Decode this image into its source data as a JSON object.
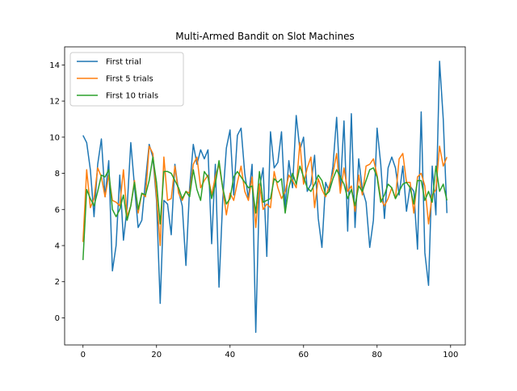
{
  "chart_data": {
    "type": "line",
    "title": "Multi-Armed Bandit on Slot Machines",
    "xlabel": "",
    "ylabel": "",
    "xlim": [
      -5,
      104
    ],
    "ylim": [
      -1.5,
      15
    ],
    "xticks": [
      0,
      20,
      40,
      60,
      80,
      100
    ],
    "yticks": [
      0,
      2,
      4,
      6,
      8,
      10,
      12,
      14
    ],
    "grid": false,
    "legend_position": "top-left",
    "series": [
      {
        "name": "First trial",
        "color": "#1f77b4",
        "x": [
          0,
          1,
          2,
          3,
          4,
          5,
          6,
          7,
          8,
          9,
          10,
          11,
          12,
          13,
          14,
          15,
          16,
          17,
          18,
          19,
          20,
          21,
          22,
          23,
          24,
          25,
          26,
          27,
          28,
          29,
          30,
          31,
          32,
          33,
          34,
          35,
          36,
          37,
          38,
          39,
          40,
          41,
          42,
          43,
          44,
          45,
          46,
          47,
          48,
          49,
          50,
          51,
          52,
          53,
          54,
          55,
          56,
          57,
          58,
          59,
          60,
          61,
          62,
          63,
          64,
          65,
          66,
          67,
          68,
          69,
          70,
          71,
          72,
          73,
          74,
          75,
          76,
          77,
          78,
          79,
          80,
          81,
          82,
          83,
          84,
          85,
          86,
          87,
          88,
          89,
          90,
          91,
          92,
          93,
          94,
          95,
          96,
          97,
          98,
          99
        ],
        "values": [
          10.1,
          9.7,
          8.2,
          5.6,
          8.5,
          9.9,
          6.7,
          8.7,
          2.6,
          4.0,
          7.9,
          4.3,
          6.1,
          9.7,
          7.3,
          5.0,
          5.4,
          7.6,
          9.6,
          8.9,
          6.5,
          0.8,
          6.5,
          6.3,
          4.6,
          8.5,
          7.0,
          6.2,
          2.9,
          7.2,
          9.6,
          8.5,
          9.3,
          8.8,
          9.3,
          4.1,
          8.5,
          1.7,
          6.5,
          9.4,
          10.4,
          6.8,
          10.1,
          10.5,
          8.0,
          6.6,
          8.5,
          -0.8,
          7.2,
          8.3,
          3.4,
          10.3,
          8.3,
          8.6,
          10.3,
          6.1,
          8.7,
          7.2,
          11.2,
          9.3,
          10.0,
          7.0,
          7.4,
          9.0,
          5.5,
          3.9,
          7.5,
          7.0,
          8.4,
          11.1,
          7.1,
          10.9,
          4.8,
          11.3,
          5.0,
          8.8,
          7.1,
          6.4,
          3.9,
          5.4,
          10.5,
          8.5,
          5.5,
          8.3,
          8.9,
          8.3,
          6.8,
          8.4,
          5.9,
          7.3,
          7.0,
          3.8,
          11.4,
          3.6,
          1.8,
          8.4,
          5.7,
          14.2,
          11.0,
          5.8
        ]
      },
      {
        "name": "First 5 trials",
        "color": "#ff7f0e",
        "x": [
          0,
          1,
          2,
          3,
          4,
          5,
          6,
          7,
          8,
          9,
          10,
          11,
          12,
          13,
          14,
          15,
          16,
          17,
          18,
          19,
          20,
          21,
          22,
          23,
          24,
          25,
          26,
          27,
          28,
          29,
          30,
          31,
          32,
          33,
          34,
          35,
          36,
          37,
          38,
          39,
          40,
          41,
          42,
          43,
          44,
          45,
          46,
          47,
          48,
          49,
          50,
          51,
          52,
          53,
          54,
          55,
          56,
          57,
          58,
          59,
          60,
          61,
          62,
          63,
          64,
          65,
          66,
          67,
          68,
          69,
          70,
          71,
          72,
          73,
          74,
          75,
          76,
          77,
          78,
          79,
          80,
          81,
          82,
          83,
          84,
          85,
          86,
          87,
          88,
          89,
          90,
          91,
          92,
          93,
          94,
          95,
          96,
          97,
          98,
          99
        ],
        "values": [
          4.2,
          8.2,
          6.1,
          6.6,
          8.3,
          7.8,
          6.7,
          7.9,
          6.5,
          6.4,
          6.2,
          8.2,
          5.6,
          6.2,
          7.6,
          5.8,
          6.9,
          6.7,
          9.5,
          9.1,
          6.8,
          4.0,
          8.9,
          6.5,
          6.6,
          8.4,
          6.9,
          6.5,
          7.0,
          6.9,
          8.5,
          8.9,
          7.2,
          7.6,
          7.9,
          6.8,
          7.8,
          8.5,
          7.2,
          5.7,
          6.9,
          6.5,
          7.5,
          8.4,
          7.0,
          6.5,
          7.8,
          5.0,
          7.4,
          6.0,
          6.3,
          6.1,
          8.1,
          7.2,
          6.6,
          7.0,
          7.9,
          7.6,
          7.2,
          9.7,
          7.4,
          8.3,
          8.9,
          6.1,
          7.7,
          7.1,
          6.7,
          7.3,
          8.0,
          9.1,
          6.9,
          8.3,
          7.0,
          7.3,
          5.9,
          7.9,
          6.8,
          8.4,
          8.5,
          8.8,
          7.9,
          6.6,
          6.2,
          6.6,
          7.2,
          6.6,
          8.8,
          9.1,
          7.5,
          7.5,
          5.8,
          7.8,
          8.0,
          7.3,
          5.2,
          6.8,
          7.1,
          9.5,
          8.4,
          8.9
        ]
      },
      {
        "name": "First 10 trials",
        "color": "#2ca02c",
        "x": [
          0,
          1,
          2,
          3,
          4,
          5,
          6,
          7,
          8,
          9,
          10,
          11,
          12,
          13,
          14,
          15,
          16,
          17,
          18,
          19,
          20,
          21,
          22,
          23,
          24,
          25,
          26,
          27,
          28,
          29,
          30,
          31,
          32,
          33,
          34,
          35,
          36,
          37,
          38,
          39,
          40,
          41,
          42,
          43,
          44,
          45,
          46,
          47,
          48,
          49,
          50,
          51,
          52,
          53,
          54,
          55,
          56,
          57,
          58,
          59,
          60,
          61,
          62,
          63,
          64,
          65,
          66,
          67,
          68,
          69,
          70,
          71,
          72,
          73,
          74,
          75,
          76,
          77,
          78,
          79,
          80,
          81,
          82,
          83,
          84,
          85,
          86,
          87,
          88,
          89,
          90,
          91,
          92,
          93,
          94,
          95,
          96,
          97,
          98,
          99
        ],
        "values": [
          3.2,
          7.1,
          6.6,
          6.2,
          7.0,
          7.9,
          7.8,
          8.2,
          6.0,
          5.6,
          6.0,
          6.8,
          5.4,
          6.2,
          7.5,
          6.0,
          6.9,
          6.8,
          7.6,
          8.9,
          7.5,
          5.2,
          8.1,
          8.1,
          8.0,
          7.6,
          7.2,
          6.6,
          7.0,
          6.7,
          8.2,
          7.1,
          6.5,
          8.1,
          7.8,
          6.6,
          7.4,
          8.7,
          7.2,
          6.3,
          6.6,
          7.8,
          8.1,
          7.8,
          7.5,
          7.2,
          7.3,
          5.8,
          8.1,
          6.4,
          6.5,
          6.6,
          7.7,
          7.5,
          7.7,
          5.8,
          7.2,
          8.0,
          7.4,
          8.4,
          7.8,
          7.2,
          7.0,
          7.4,
          7.9,
          7.6,
          6.8,
          7.0,
          7.7,
          8.2,
          7.8,
          7.4,
          6.6,
          7.1,
          6.2,
          7.3,
          7.0,
          7.6,
          8.2,
          8.3,
          7.8,
          6.4,
          6.8,
          7.4,
          7.2,
          6.6,
          7.0,
          7.4,
          7.5,
          7.2,
          6.3,
          7.6,
          7.6,
          6.5,
          7.0,
          6.4,
          8.4,
          7.0,
          7.4,
          6.5
        ]
      }
    ]
  }
}
